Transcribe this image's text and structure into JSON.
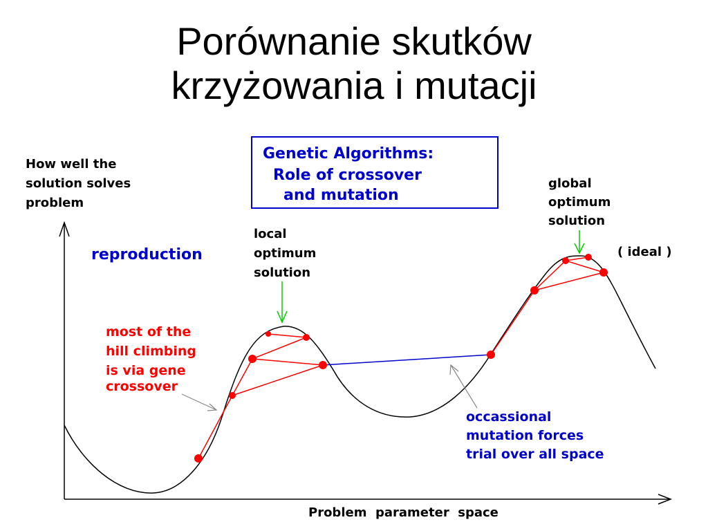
{
  "slide": {
    "title_line1": "Porównanie skutków",
    "title_line2": "krzyżowania i mutacji"
  },
  "diagram": {
    "box": {
      "line1": "Genetic Algorithms:",
      "line2": "Role of crossover",
      "line3": "and mutation"
    },
    "y_axis_label": [
      "How well the",
      "solution solves",
      "problem"
    ],
    "x_axis_label": "Problem  parameter  space",
    "reproduction": "reproduction",
    "local_optimum": [
      "local",
      "optimum",
      "solution"
    ],
    "global_optimum": [
      "global",
      "optimum",
      "solution"
    ],
    "ideal": "( ideal )",
    "crossover_note": [
      "most of the",
      "hill climbing",
      "is via gene",
      "crossover"
    ],
    "mutation_note": [
      "occassional",
      "mutation forces",
      "trial over all space"
    ]
  },
  "colors": {
    "curve": "#000000",
    "crossover": "#ff0000",
    "mutation": "#0000cc",
    "marker_arrow": "#00cc00",
    "title_box_border": "#0000cc",
    "note_blue": "#0000cc",
    "note_red": "#ff0000"
  }
}
